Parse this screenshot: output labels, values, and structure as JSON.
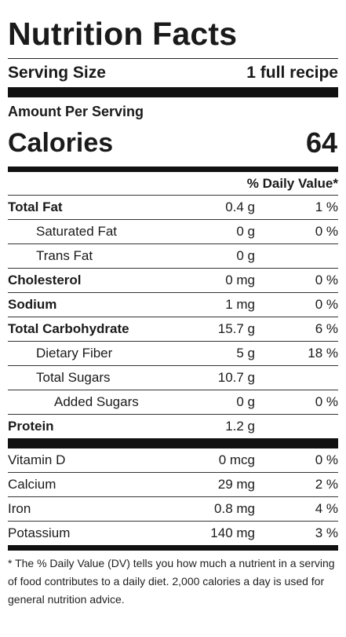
{
  "title": "Nutrition Facts",
  "serving": {
    "label": "Serving Size",
    "value": "1 full recipe"
  },
  "amount_per_serving": "Amount Per Serving",
  "calories": {
    "label": "Calories",
    "value": "64"
  },
  "dv_header": "% Daily Value*",
  "nutrients": [
    {
      "name": "Total Fat",
      "amount": "0.4 g",
      "dv": "1 %"
    },
    {
      "name": "Saturated Fat",
      "amount": "0 g",
      "dv": "0 %"
    },
    {
      "name": "Trans Fat",
      "amount": "0 g",
      "dv": ""
    },
    {
      "name": "Cholesterol",
      "amount": "0 mg",
      "dv": "0 %"
    },
    {
      "name": "Sodium",
      "amount": "1 mg",
      "dv": "0 %"
    },
    {
      "name": "Total Carbohydrate",
      "amount": "15.7 g",
      "dv": "6 %"
    },
    {
      "name": "Dietary Fiber",
      "amount": "5 g",
      "dv": "18 %"
    },
    {
      "name": "Total Sugars",
      "amount": "10.7 g",
      "dv": ""
    },
    {
      "name": "Added Sugars",
      "amount": "0 g",
      "dv": "0 %"
    },
    {
      "name": "Protein",
      "amount": "1.2 g",
      "dv": ""
    }
  ],
  "vitamins": [
    {
      "name": "Vitamin D",
      "amount": "0 mcg",
      "dv": "0 %"
    },
    {
      "name": "Calcium",
      "amount": "29 mg",
      "dv": "2 %"
    },
    {
      "name": "Iron",
      "amount": "0.8 mg",
      "dv": "4 %"
    },
    {
      "name": "Potassium",
      "amount": "140 mg",
      "dv": "3 %"
    }
  ],
  "footnote": "* The % Daily Value (DV) tells you how much a nutrient in a serving of food contributes to a daily diet. 2,000 calories a day is used for general nutrition advice."
}
